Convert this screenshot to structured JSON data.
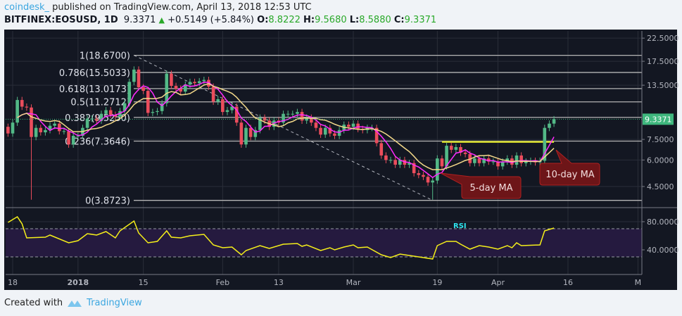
{
  "header": {
    "user": "coindesk_",
    "published": "published on TradingView.com, April 13, 2018 12:53 UTC",
    "symbol": "BITFINEX:EOSUSD, 1D",
    "last": "9.3371",
    "change": "+0.5149 (+5.84%)",
    "o_label": "O:",
    "o": "8.8222",
    "h_label": "H:",
    "h": "9.5680",
    "l_label": "L:",
    "l": "8.5880",
    "c_label": "C:",
    "c": "9.3371"
  },
  "colors": {
    "up": "#53b987",
    "down": "#eb4d5c",
    "ma5": "#ff2bff",
    "ma10": "#f3d98a",
    "rsi": "#f5ef1a",
    "last_badge": "#3fb77e",
    "brand": "#3aa6e0"
  },
  "price_axis": {
    "scale": "log",
    "ticks": [
      "22.5000",
      "17.5000",
      "13.5000",
      "7.5000",
      "6.0000",
      "4.5000"
    ],
    "last_badge": "9.3371"
  },
  "rsi_axis": {
    "ticks": [
      "80.0000",
      "40.0000"
    ],
    "bands": [
      70,
      30
    ],
    "label": "RSI"
  },
  "time_axis": [
    {
      "label": "18",
      "date": "2017-12-18"
    },
    {
      "label": "2018",
      "date": "2018-01-01"
    },
    {
      "label": "15",
      "date": "2018-01-15"
    },
    {
      "label": "Feb",
      "date": "2018-02-01"
    },
    {
      "label": "13",
      "date": "2018-02-13"
    },
    {
      "label": "Mar",
      "date": "2018-03-01"
    },
    {
      "label": "19",
      "date": "2018-03-19"
    },
    {
      "label": "Apr",
      "date": "2018-04-01"
    },
    {
      "label": "16",
      "date": "2018-04-16"
    },
    {
      "label": "M",
      "date": "2018-05-01"
    }
  ],
  "fib_levels": [
    {
      "label": "1(18.6700)",
      "price": 18.67
    },
    {
      "label": "0.786(15.5033)",
      "price": 15.5033
    },
    {
      "label": "0.618(13.0173)",
      "price": 13.0173
    },
    {
      "label": "0.5(11.2712)",
      "price": 11.2712
    },
    {
      "label": "0.382(9.5250)",
      "price": 9.525
    },
    {
      "label": "0.236(7.3646)",
      "price": 7.3646
    },
    {
      "label": "0(3.8723)",
      "price": 3.8723
    }
  ],
  "fib_trendline": {
    "from": {
      "date": "2018-01-13",
      "price": 18.67
    },
    "to": {
      "date": "2018-03-18",
      "price": 3.8723
    }
  },
  "resistance_line": {
    "from": "2018-03-20",
    "to": "2018-04-13",
    "price": 7.3
  },
  "annotations": [
    {
      "text": "5-day MA"
    },
    {
      "text": "10-day MA"
    }
  ],
  "chart_data": {
    "type": "candlestick",
    "first_date": "2017-12-17",
    "first_open": 8.6,
    "closes": [
      8.0,
      9.0,
      11.5,
      10.7,
      10.6,
      7.7,
      8.5,
      8.1,
      8.3,
      8.7,
      8.9,
      8.2,
      8.2,
      7.1,
      7.8,
      7.8,
      8.5,
      9.4,
      9.4,
      9.2,
      9.9,
      10.3,
      9.8,
      9.6,
      10.2,
      11.1,
      14.0,
      16.0,
      13.2,
      12.7,
      10.0,
      10.1,
      10.2,
      11.1,
      15.3,
      13.4,
      13.0,
      12.6,
      13.6,
      14.0,
      13.8,
      14.1,
      14.3,
      13.3,
      11.3,
      11.6,
      10.1,
      10.3,
      10.7,
      9.0,
      7.1,
      8.5,
      7.7,
      8.3,
      9.5,
      9.2,
      8.6,
      9.2,
      9.0,
      9.9,
      9.9,
      9.9,
      10.1,
      9.2,
      9.5,
      9.0,
      8.5,
      7.9,
      8.5,
      8.0,
      7.8,
      8.3,
      8.8,
      8.6,
      8.9,
      8.4,
      8.3,
      8.5,
      8.5,
      7.2,
      6.3,
      6.0,
      6.0,
      5.7,
      6.0,
      5.7,
      5.8,
      5.2,
      5.1,
      5.0,
      4.7,
      4.8,
      6.1,
      5.6,
      7.0,
      6.7,
      6.9,
      6.5,
      6.4,
      5.8,
      6.1,
      5.8,
      6.1,
      5.9,
      5.9,
      5.6,
      5.9,
      6.1,
      5.7,
      6.3,
      5.8,
      5.9,
      5.95,
      5.85,
      5.95,
      8.5,
      8.9,
      9.3371
    ],
    "notable_lows": [
      {
        "date": "2017-12-22",
        "low": 3.9
      },
      {
        "date": "2018-03-18",
        "low": 3.9
      }
    ],
    "moving_averages": [
      {
        "name": "5-day MA",
        "period": 5
      },
      {
        "name": "10-day MA",
        "period": 10
      }
    ],
    "rsi": [
      [
        "2017-12-17",
        79
      ],
      [
        "2017-12-19",
        87
      ],
      [
        "2017-12-20",
        77
      ],
      [
        "2017-12-21",
        57
      ],
      [
        "2017-12-25",
        58
      ],
      [
        "2017-12-26",
        61
      ],
      [
        "2017-12-30",
        50
      ],
      [
        "2018-01-01",
        53
      ],
      [
        "2018-01-03",
        63
      ],
      [
        "2018-01-05",
        61
      ],
      [
        "2018-01-07",
        66
      ],
      [
        "2018-01-09",
        57
      ],
      [
        "2018-01-10",
        67
      ],
      [
        "2018-01-13",
        81
      ],
      [
        "2018-01-14",
        64
      ],
      [
        "2018-01-16",
        50
      ],
      [
        "2018-01-18",
        52
      ],
      [
        "2018-01-20",
        67
      ],
      [
        "2018-01-21",
        58
      ],
      [
        "2018-01-23",
        57
      ],
      [
        "2018-01-25",
        60
      ],
      [
        "2018-01-28",
        62
      ],
      [
        "2018-01-30",
        47
      ],
      [
        "2018-02-01",
        43
      ],
      [
        "2018-02-03",
        44
      ],
      [
        "2018-02-05",
        33
      ],
      [
        "2018-02-06",
        39
      ],
      [
        "2018-02-09",
        46
      ],
      [
        "2018-02-11",
        42
      ],
      [
        "2018-02-14",
        48
      ],
      [
        "2018-02-17",
        49
      ],
      [
        "2018-02-18",
        45
      ],
      [
        "2018-02-19",
        47
      ],
      [
        "2018-02-22",
        39
      ],
      [
        "2018-02-24",
        43
      ],
      [
        "2018-02-25",
        40
      ],
      [
        "2018-02-27",
        44
      ],
      [
        "2018-03-01",
        47
      ],
      [
        "2018-03-02",
        43
      ],
      [
        "2018-03-04",
        44
      ],
      [
        "2018-03-07",
        33
      ],
      [
        "2018-03-09",
        29
      ],
      [
        "2018-03-11",
        34
      ],
      [
        "2018-03-14",
        31
      ],
      [
        "2018-03-18",
        27
      ],
      [
        "2018-03-19",
        46
      ],
      [
        "2018-03-21",
        52
      ],
      [
        "2018-03-23",
        52
      ],
      [
        "2018-03-24",
        48
      ],
      [
        "2018-03-26",
        41
      ],
      [
        "2018-03-28",
        46
      ],
      [
        "2018-03-30",
        44
      ],
      [
        "2018-04-01",
        41
      ],
      [
        "2018-04-03",
        46
      ],
      [
        "2018-04-04",
        43
      ],
      [
        "2018-04-05",
        50
      ],
      [
        "2018-04-06",
        46
      ],
      [
        "2018-04-10",
        47
      ],
      [
        "2018-04-11",
        67
      ],
      [
        "2018-04-13",
        71
      ]
    ]
  },
  "footer": {
    "created_with": "Created with",
    "brand": "TradingView"
  }
}
